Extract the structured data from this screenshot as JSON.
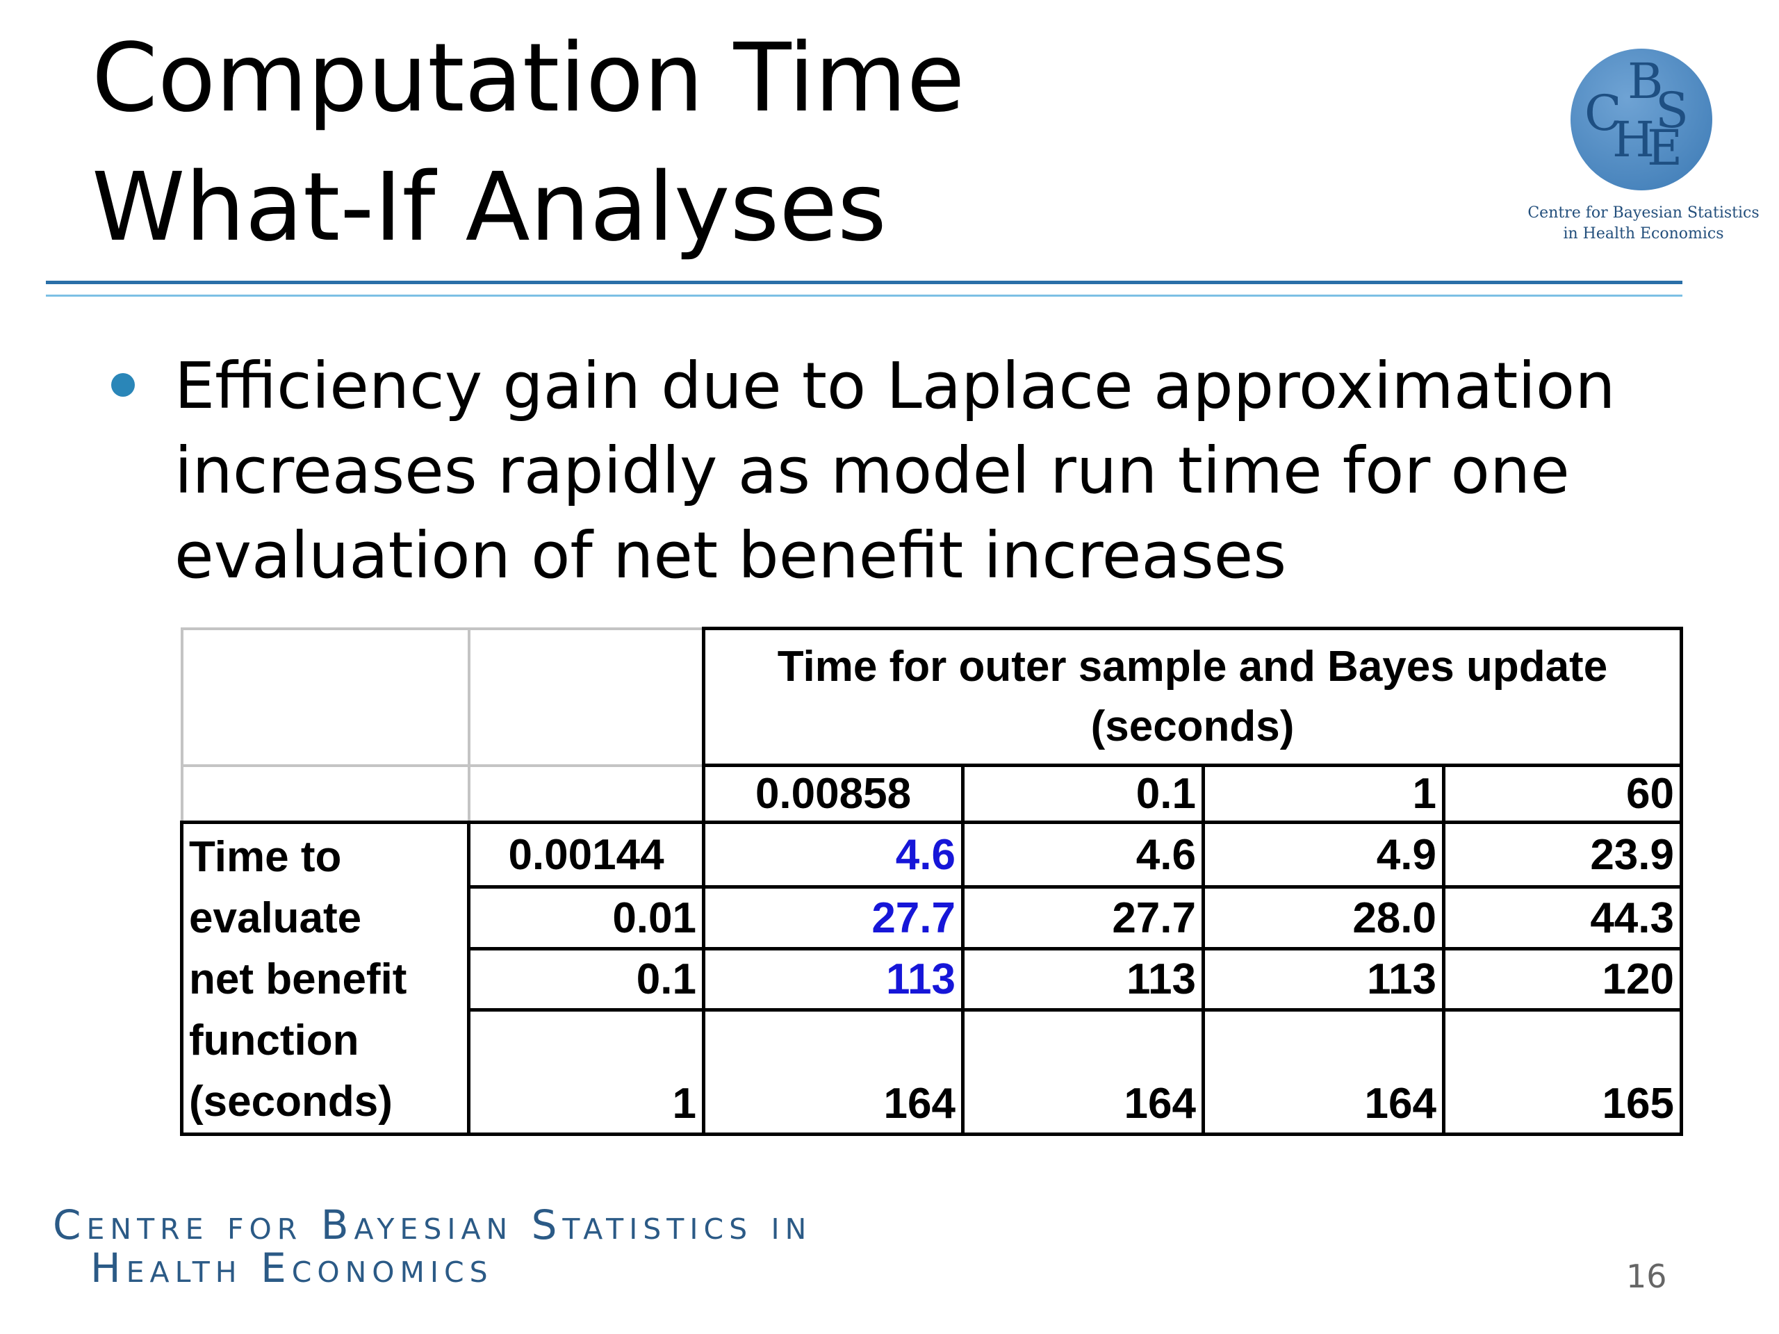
{
  "header": {
    "title_lines": [
      "Computation Time",
      "What-If Analyses"
    ],
    "logo": {
      "monogram": [
        "C",
        "B",
        "H",
        "S",
        "E"
      ],
      "caption_lines": [
        "Centre for Bayesian Statistics",
        "in Health Economics"
      ]
    }
  },
  "bullets": [
    {
      "lines": [
        "Efficiency gain due to Laplace approximation",
        "increases rapidly as model run time for one",
        "evaluation of net benefit increases"
      ]
    }
  ],
  "table": {
    "column_header_lines": [
      "Time for outer sample and Bayes update",
      "(seconds)"
    ],
    "columns": [
      "0.00858",
      "0.1",
      "1",
      "60"
    ],
    "row_header_lines": [
      "Time to",
      "evaluate",
      "net benefit",
      "function",
      "(seconds)"
    ],
    "rows": [
      {
        "label": "0.00144",
        "cells": [
          "4.6",
          "4.6",
          "4.9",
          "23.9"
        ]
      },
      {
        "label": "0.01",
        "cells": [
          "27.7",
          "27.7",
          "28.0",
          "44.3"
        ]
      },
      {
        "label": "0.1",
        "cells": [
          "113",
          "113",
          "113",
          "120"
        ]
      },
      {
        "label": "1",
        "cells": [
          "164",
          "164",
          "164",
          "165"
        ]
      }
    ]
  },
  "footer": {
    "org_lines": [
      "Centre for Bayesian Statistics in",
      "Health Economics"
    ],
    "page_number": "16"
  }
}
